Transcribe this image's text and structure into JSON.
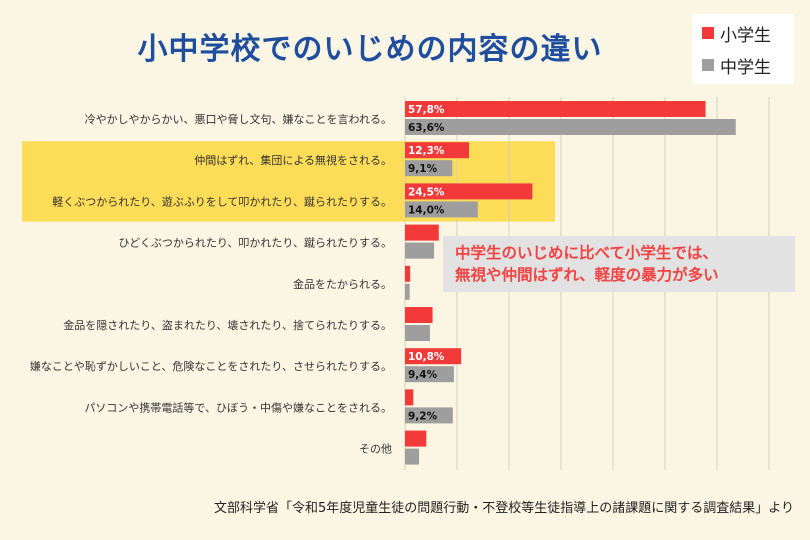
{
  "title": "小中学校でのいじめの内容の違い",
  "legend": [
    {
      "name": "小学生",
      "color": "#f23a3a"
    },
    {
      "name": "中学生",
      "color": "#9e9e9e"
    }
  ],
  "callout": {
    "line1": "中学生のいじめに比べて小学生では、",
    "line2": "無視や仲間はずれ、軽度の暴力が多い"
  },
  "source": "文部科学省「令和5年度児童生徒の問題行動・不登校等生徒指導上の諸課題に関する調査結果」より",
  "chart_data": {
    "type": "bar",
    "orientation": "horizontal",
    "categories": [
      "冷やかしやからかい、悪口や脅し文句、嫌なことを言われる。",
      "仲間はずれ、集団による無視をされる。",
      "軽くぶつかられたり、遊ぶふりをして叩かれたり、蹴られたりする。",
      "ひどくぶつかられたり、叩かれたり、蹴られたりする。",
      "金品をたかられる。",
      "金品を隠されたり、盗まれたり、壊されたり、捨てられたりする。",
      "嫌なことや恥ずかしいこと、危険なことをされたり、させられたりする。",
      "パソコンや携帯電話等で、ひぼう・中傷や嫌なことをされる。",
      "その他"
    ],
    "highlighted": [
      1,
      2
    ],
    "series": [
      {
        "name": "小学生",
        "values": [
          57.8,
          12.3,
          24.5,
          6.5,
          1.0,
          5.3,
          10.8,
          1.6,
          4.1
        ],
        "labels": [
          "57,8%",
          "12,3%",
          "24,5%",
          "",
          "",
          "",
          "10,8%",
          "",
          ""
        ]
      },
      {
        "name": "中学生",
        "values": [
          63.6,
          9.1,
          14.0,
          5.6,
          0.9,
          4.8,
          9.4,
          9.2,
          2.7
        ],
        "labels": [
          "63,6%",
          "9,1%",
          "14,0%",
          "",
          "",
          "",
          "9,4%",
          "9,2%",
          ""
        ]
      }
    ],
    "xlim": [
      0,
      70
    ],
    "grid": true
  }
}
